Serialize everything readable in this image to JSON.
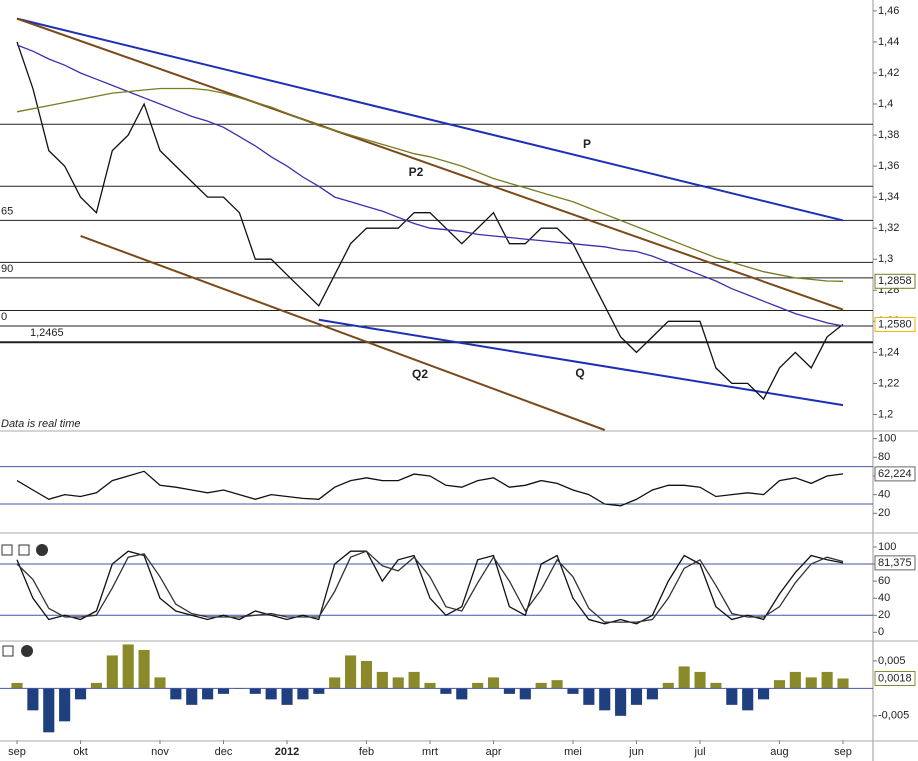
{
  "chart_data": [
    {
      "type": "line",
      "note": "Data is real time",
      "categories": [
        "sep",
        null,
        null,
        null,
        "okt",
        null,
        null,
        null,
        null,
        "nov",
        null,
        null,
        null,
        "dec",
        null,
        null,
        null,
        "2012",
        null,
        null,
        null,
        null,
        "feb",
        null,
        null,
        null,
        "mrt",
        null,
        null,
        null,
        "apr",
        null,
        null,
        null,
        null,
        "mei",
        null,
        null,
        null,
        "jun",
        null,
        null,
        null,
        "jul",
        null,
        null,
        null,
        null,
        "aug",
        null,
        null,
        null,
        "sep"
      ],
      "ylim": [
        1.19,
        1.467
      ],
      "yticks": [
        {
          "value": 1.46,
          "label": "1,46"
        },
        {
          "value": 1.44,
          "label": "1,44"
        },
        {
          "value": 1.42,
          "label": "1,42"
        },
        {
          "value": 1.4,
          "label": "1,4"
        },
        {
          "value": 1.38,
          "label": "1,38"
        },
        {
          "value": 1.36,
          "label": "1,36"
        },
        {
          "value": 1.34,
          "label": "1,34"
        },
        {
          "value": 1.32,
          "label": "1,32"
        },
        {
          "value": 1.3,
          "label": "1,3"
        },
        {
          "value": 1.28,
          "label": "1,28"
        },
        {
          "value": 1.26,
          "label": "1,26"
        },
        {
          "value": 1.24,
          "label": "1,24"
        },
        {
          "value": 1.22,
          "label": "1,22"
        },
        {
          "value": 1.2,
          "label": "1,2"
        }
      ],
      "series": [
        {
          "color": "#111111",
          "last_label": "1,2580",
          "badge_color": "#f2b400",
          "values": [
            1.44,
            1.41,
            1.37,
            1.36,
            1.34,
            1.33,
            1.37,
            1.38,
            1.4,
            1.37,
            1.36,
            1.35,
            1.34,
            1.34,
            1.33,
            1.3,
            1.3,
            1.29,
            1.28,
            1.27,
            1.29,
            1.31,
            1.32,
            1.32,
            1.32,
            1.33,
            1.33,
            1.32,
            1.31,
            1.32,
            1.33,
            1.31,
            1.31,
            1.32,
            1.32,
            1.31,
            1.29,
            1.27,
            1.25,
            1.24,
            1.25,
            1.26,
            1.26,
            1.26,
            1.23,
            1.22,
            1.22,
            1.21,
            1.23,
            1.24,
            1.23,
            1.25,
            1.258
          ]
        },
        {
          "color": "#3a2fb0",
          "values": [
            1.438,
            1.434,
            1.429,
            1.425,
            1.42,
            1.416,
            1.412,
            1.408,
            1.404,
            1.4,
            1.396,
            1.392,
            1.389,
            1.385,
            1.379,
            1.373,
            1.366,
            1.36,
            1.353,
            1.347,
            1.34,
            1.337,
            1.334,
            1.331,
            1.327,
            1.323,
            1.32,
            1.319,
            1.318,
            1.316,
            1.315,
            1.314,
            1.313,
            1.312,
            1.311,
            1.31,
            1.309,
            1.308,
            1.306,
            1.305,
            1.302,
            1.298,
            1.294,
            1.29,
            1.286,
            1.281,
            1.277,
            1.273,
            1.269,
            1.265,
            1.262,
            1.259,
            1.257
          ]
        },
        {
          "color": "#7a7a20",
          "last_label": "1,2858",
          "badge_color": "#7a7a20",
          "values": [
            1.395,
            1.397,
            1.399,
            1.401,
            1.403,
            1.405,
            1.407,
            1.408,
            1.409,
            1.41,
            1.41,
            1.41,
            1.409,
            1.407,
            1.404,
            1.401,
            1.398,
            1.394,
            1.39,
            1.386,
            1.383,
            1.38,
            1.377,
            1.374,
            1.371,
            1.368,
            1.366,
            1.363,
            1.36,
            1.356,
            1.352,
            1.349,
            1.346,
            1.343,
            1.34,
            1.337,
            1.333,
            1.329,
            1.325,
            1.321,
            1.317,
            1.313,
            1.309,
            1.305,
            1.301,
            1.298,
            1.295,
            1.292,
            1.29,
            1.288,
            1.287,
            1.286,
            1.2858
          ]
        }
      ],
      "levels": [
        {
          "value": 1.387
        },
        {
          "value": 1.347
        },
        {
          "value": 1.325,
          "label": "65"
        },
        {
          "value": 1.298
        },
        {
          "value": 1.288,
          "label": "90"
        },
        {
          "value": 1.267
        },
        {
          "value": 1.257,
          "label": "0"
        },
        {
          "value": 1.2465,
          "label": "1,2465"
        }
      ],
      "trendlines": [
        {
          "label": "P",
          "color": "#1c2fb5",
          "from": [
            0,
            1.455
          ],
          "to": [
            52,
            1.325
          ]
        },
        {
          "label": "P2",
          "color": "#7a4a1a",
          "from": [
            0,
            1.455
          ],
          "to": [
            52,
            1.2676
          ]
        },
        {
          "label": "Q",
          "color": "#1c2fb5",
          "from": [
            19,
            1.261
          ],
          "to": [
            52,
            1.206
          ]
        },
        {
          "label": "Q2",
          "color": "#7a4a1a",
          "from": [
            4,
            1.315
          ],
          "to": [
            37,
            1.19
          ]
        }
      ]
    },
    {
      "type": "line",
      "ylim": [
        0,
        106
      ],
      "yticks": [
        100,
        80,
        60,
        40,
        20
      ],
      "levels": [
        {
          "value": 70
        },
        {
          "value": 30
        }
      ],
      "series": [
        {
          "color": "#111111",
          "last_label": "62,224",
          "badge_color": "#666666",
          "values": [
            55,
            45,
            35,
            40,
            38,
            42,
            55,
            60,
            65,
            50,
            48,
            45,
            42,
            45,
            40,
            35,
            40,
            38,
            36,
            35,
            48,
            55,
            58,
            55,
            55,
            62,
            60,
            50,
            48,
            55,
            58,
            48,
            50,
            55,
            52,
            45,
            40,
            30,
            28,
            35,
            45,
            50,
            50,
            48,
            38,
            40,
            42,
            40,
            55,
            58,
            52,
            60,
            62.224
          ]
        }
      ]
    },
    {
      "type": "line",
      "ylim": [
        -9,
        107
      ],
      "yticks": [
        100,
        80,
        60,
        40,
        20,
        0
      ],
      "levels": [
        {
          "value": 80
        },
        {
          "value": 20
        }
      ],
      "series": [
        {
          "color": "#111111",
          "last_label": "81,375",
          "badge_color": "#666666",
          "values": [
            85,
            40,
            15,
            20,
            15,
            25,
            80,
            95,
            90,
            40,
            25,
            20,
            15,
            20,
            15,
            25,
            20,
            15,
            20,
            15,
            80,
            95,
            95,
            60,
            85,
            90,
            40,
            20,
            30,
            85,
            90,
            30,
            20,
            80,
            90,
            40,
            15,
            10,
            15,
            10,
            20,
            60,
            90,
            80,
            30,
            15,
            20,
            15,
            45,
            70,
            90,
            85,
            81.375
          ]
        },
        {
          "color": "#333333",
          "values": [
            80,
            62,
            28,
            18,
            18,
            20,
            52,
            88,
            92,
            65,
            33,
            22,
            18,
            18,
            18,
            20,
            22,
            18,
            18,
            18,
            48,
            88,
            95,
            78,
            72,
            88,
            65,
            30,
            25,
            58,
            88,
            60,
            25,
            50,
            85,
            65,
            28,
            12,
            12,
            12,
            15,
            40,
            75,
            85,
            55,
            22,
            18,
            18,
            30,
            58,
            80,
            88,
            83
          ]
        }
      ]
    },
    {
      "type": "bar",
      "ylim": [
        -0.0094,
        0.0079
      ],
      "yticks": [
        {
          "value": 0.005,
          "label": "0,005"
        },
        {
          "value": -0.005,
          "label": "-0,005"
        }
      ],
      "series": [
        {
          "color": "#8b8a2a",
          "negative_color": "#1f3f7f",
          "last_label": "0,0018",
          "badge_color": "#8b8a2a",
          "values": [
            0.001,
            -0.004,
            -0.008,
            -0.006,
            -0.002,
            0.001,
            0.006,
            0.008,
            0.007,
            0.002,
            -0.002,
            -0.003,
            -0.002,
            -0.001,
            0,
            -0.001,
            -0.002,
            -0.003,
            -0.002,
            -0.001,
            0.002,
            0.006,
            0.005,
            0.003,
            0.002,
            0.003,
            0.001,
            -0.001,
            -0.002,
            0.001,
            0.002,
            -0.001,
            -0.002,
            0.001,
            0.0015,
            -0.001,
            -0.003,
            -0.004,
            -0.005,
            -0.003,
            -0.002,
            0.001,
            0.004,
            0.003,
            0.001,
            -0.003,
            -0.004,
            -0.002,
            0.0015,
            0.003,
            0.002,
            0.003,
            0.0018
          ]
        }
      ]
    }
  ]
}
